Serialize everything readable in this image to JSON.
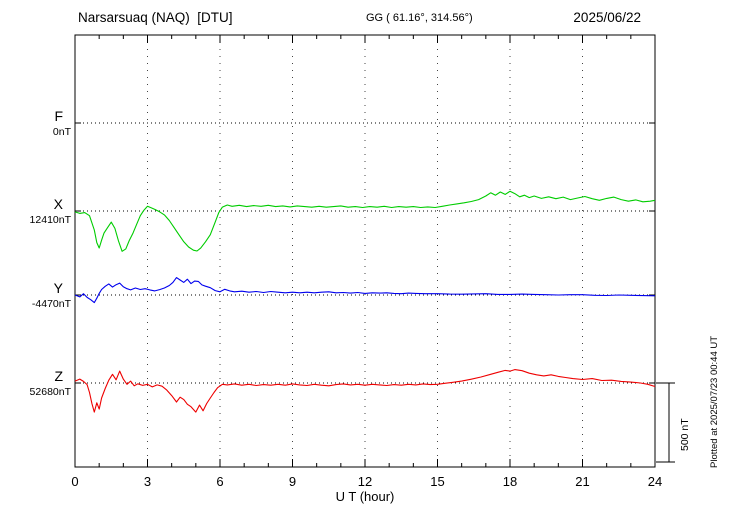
{
  "header": {
    "station_title": "Narsarsuaq (NAQ)  [DTU]",
    "coords": "GG ( 61.16°, 314.56°)",
    "date": "2025/06/22"
  },
  "x_axis": {
    "label": "U T (hour)",
    "ticks": [
      0,
      3,
      6,
      9,
      12,
      15,
      18,
      21,
      24
    ],
    "minor_step": 1,
    "range": [
      0,
      24
    ]
  },
  "scale_bar": {
    "label": "500 nT",
    "nT": 500
  },
  "plot_note": "Plotted at 2025/07/23 00:44 UT",
  "chart_data": {
    "type": "line",
    "title": "Narsarsuaq (NAQ) [DTU] magnetogram 2025/06/22",
    "xlabel": "U T (hour)",
    "x_range": [
      0,
      24
    ],
    "grid": true,
    "legend_position": "left-margin",
    "scale_nT_per_division": 500,
    "units": "points are [UT hour, offset in nT from series baseline]",
    "series": [
      {
        "name": "F",
        "baseline_label": "0nT",
        "baseline_nT": 0,
        "color": "#FFA500",
        "points": []
      },
      {
        "name": "X",
        "baseline_label": "12410nT",
        "baseline_nT": 12410,
        "color": "#00CC00",
        "points": [
          [
            0,
            -6
          ],
          [
            0.2,
            -15
          ],
          [
            0.4,
            -10
          ],
          [
            0.6,
            -30
          ],
          [
            0.8,
            -120
          ],
          [
            0.9,
            -200
          ],
          [
            1.0,
            -234
          ],
          [
            1.1,
            -185
          ],
          [
            1.2,
            -140
          ],
          [
            1.35,
            -105
          ],
          [
            1.5,
            -70
          ],
          [
            1.65,
            -110
          ],
          [
            1.8,
            -190
          ],
          [
            1.95,
            -255
          ],
          [
            2.1,
            -240
          ],
          [
            2.25,
            -185
          ],
          [
            2.4,
            -140
          ],
          [
            2.55,
            -85
          ],
          [
            2.7,
            -30
          ],
          [
            2.85,
            5
          ],
          [
            3.0,
            30
          ],
          [
            3.15,
            20
          ],
          [
            3.3,
            10
          ],
          [
            3.5,
            -5
          ],
          [
            3.7,
            -25
          ],
          [
            3.9,
            -60
          ],
          [
            4.1,
            -105
          ],
          [
            4.3,
            -150
          ],
          [
            4.5,
            -195
          ],
          [
            4.7,
            -228
          ],
          [
            4.9,
            -248
          ],
          [
            5.05,
            -253
          ],
          [
            5.2,
            -235
          ],
          [
            5.4,
            -195
          ],
          [
            5.6,
            -150
          ],
          [
            5.8,
            -70
          ],
          [
            5.95,
            -10
          ],
          [
            6.1,
            25
          ],
          [
            6.3,
            38
          ],
          [
            6.5,
            30
          ],
          [
            6.8,
            36
          ],
          [
            7.1,
            28
          ],
          [
            7.4,
            34
          ],
          [
            7.7,
            30
          ],
          [
            8.0,
            36
          ],
          [
            8.3,
            28
          ],
          [
            8.6,
            32
          ],
          [
            8.9,
            26
          ],
          [
            9.2,
            32
          ],
          [
            9.5,
            28
          ],
          [
            9.8,
            24
          ],
          [
            10.1,
            30
          ],
          [
            10.4,
            24
          ],
          [
            10.7,
            28
          ],
          [
            11.0,
            32
          ],
          [
            11.3,
            24
          ],
          [
            11.6,
            28
          ],
          [
            11.9,
            22
          ],
          [
            12.2,
            28
          ],
          [
            12.5,
            24
          ],
          [
            12.8,
            30
          ],
          [
            13.1,
            22
          ],
          [
            13.4,
            28
          ],
          [
            13.7,
            24
          ],
          [
            14.0,
            28
          ],
          [
            14.3,
            22
          ],
          [
            14.6,
            26
          ],
          [
            14.9,
            22
          ],
          [
            15.2,
            30
          ],
          [
            15.5,
            38
          ],
          [
            15.8,
            45
          ],
          [
            16.1,
            52
          ],
          [
            16.4,
            60
          ],
          [
            16.7,
            72
          ],
          [
            17.0,
            95
          ],
          [
            17.2,
            115
          ],
          [
            17.4,
            100
          ],
          [
            17.6,
            120
          ],
          [
            17.8,
            105
          ],
          [
            18.0,
            125
          ],
          [
            18.2,
            110
          ],
          [
            18.4,
            90
          ],
          [
            18.6,
            100
          ],
          [
            18.8,
            85
          ],
          [
            19.0,
            95
          ],
          [
            19.3,
            80
          ],
          [
            19.6,
            90
          ],
          [
            19.9,
            78
          ],
          [
            20.2,
            88
          ],
          [
            20.5,
            72
          ],
          [
            20.8,
            82
          ],
          [
            21.1,
            92
          ],
          [
            21.4,
            78
          ],
          [
            21.7,
            68
          ],
          [
            22.0,
            80
          ],
          [
            22.3,
            88
          ],
          [
            22.6,
            72
          ],
          [
            22.9,
            62
          ],
          [
            23.2,
            70
          ],
          [
            23.5,
            58
          ],
          [
            23.8,
            62
          ],
          [
            24.0,
            68
          ]
        ]
      },
      {
        "name": "Y",
        "baseline_label": "-4470nT",
        "baseline_nT": -4470,
        "color": "#0000EE",
        "points": [
          [
            0,
            0
          ],
          [
            0.2,
            -12
          ],
          [
            0.35,
            8
          ],
          [
            0.5,
            -15
          ],
          [
            0.65,
            -30
          ],
          [
            0.8,
            -48
          ],
          [
            0.9,
            -20
          ],
          [
            1.0,
            10
          ],
          [
            1.1,
            35
          ],
          [
            1.25,
            55
          ],
          [
            1.4,
            70
          ],
          [
            1.55,
            50
          ],
          [
            1.7,
            65
          ],
          [
            1.85,
            75
          ],
          [
            2.0,
            52
          ],
          [
            2.15,
            40
          ],
          [
            2.3,
            32
          ],
          [
            2.5,
            44
          ],
          [
            2.7,
            35
          ],
          [
            2.9,
            40
          ],
          [
            3.1,
            32
          ],
          [
            3.3,
            26
          ],
          [
            3.5,
            34
          ],
          [
            3.7,
            44
          ],
          [
            3.9,
            60
          ],
          [
            4.05,
            80
          ],
          [
            4.2,
            110
          ],
          [
            4.35,
            95
          ],
          [
            4.5,
            80
          ],
          [
            4.65,
            100
          ],
          [
            4.8,
            72
          ],
          [
            4.95,
            88
          ],
          [
            5.1,
            86
          ],
          [
            5.25,
            64
          ],
          [
            5.4,
            56
          ],
          [
            5.6,
            46
          ],
          [
            5.8,
            28
          ],
          [
            6.0,
            20
          ],
          [
            6.2,
            36
          ],
          [
            6.4,
            26
          ],
          [
            6.6,
            20
          ],
          [
            6.9,
            24
          ],
          [
            7.2,
            18
          ],
          [
            7.5,
            22
          ],
          [
            7.8,
            16
          ],
          [
            8.1,
            22
          ],
          [
            8.4,
            18
          ],
          [
            8.7,
            14
          ],
          [
            9.0,
            18
          ],
          [
            9.3,
            14
          ],
          [
            9.6,
            18
          ],
          [
            9.9,
            14
          ],
          [
            10.2,
            18
          ],
          [
            10.5,
            20
          ],
          [
            10.8,
            14
          ],
          [
            11.1,
            16
          ],
          [
            11.4,
            12
          ],
          [
            11.7,
            16
          ],
          [
            12.0,
            10
          ],
          [
            12.3,
            14
          ],
          [
            12.6,
            12
          ],
          [
            12.9,
            14
          ],
          [
            13.2,
            10
          ],
          [
            13.5,
            8
          ],
          [
            13.8,
            12
          ],
          [
            14.1,
            10
          ],
          [
            14.5,
            8
          ],
          [
            15.0,
            8
          ],
          [
            15.5,
            6
          ],
          [
            16.0,
            5
          ],
          [
            16.5,
            7
          ],
          [
            17.0,
            8
          ],
          [
            17.5,
            4
          ],
          [
            18.0,
            4
          ],
          [
            18.5,
            6
          ],
          [
            19.0,
            4
          ],
          [
            19.5,
            2
          ],
          [
            20.0,
            0
          ],
          [
            20.5,
            2
          ],
          [
            21.0,
            2
          ],
          [
            21.5,
            -2
          ],
          [
            22.0,
            -3
          ],
          [
            22.5,
            0
          ],
          [
            23.0,
            -2
          ],
          [
            23.5,
            -4
          ],
          [
            24.0,
            -5
          ]
        ]
      },
      {
        "name": "Z",
        "baseline_label": "52680nT",
        "baseline_nT": 52680,
        "color": "#EE0000",
        "points": [
          [
            0,
            12
          ],
          [
            0.2,
            25
          ],
          [
            0.35,
            10
          ],
          [
            0.5,
            -10
          ],
          [
            0.6,
            -60
          ],
          [
            0.7,
            -130
          ],
          [
            0.8,
            -184
          ],
          [
            0.9,
            -125
          ],
          [
            1.0,
            -165
          ],
          [
            1.1,
            -95
          ],
          [
            1.25,
            -35
          ],
          [
            1.4,
            18
          ],
          [
            1.55,
            55
          ],
          [
            1.7,
            20
          ],
          [
            1.85,
            75
          ],
          [
            2.0,
            25
          ],
          [
            2.15,
            -8
          ],
          [
            2.3,
            12
          ],
          [
            2.45,
            -18
          ],
          [
            2.6,
            -5
          ],
          [
            2.8,
            -15
          ],
          [
            3.0,
            -8
          ],
          [
            3.2,
            -25
          ],
          [
            3.4,
            -12
          ],
          [
            3.6,
            -20
          ],
          [
            3.8,
            -45
          ],
          [
            4.0,
            -80
          ],
          [
            4.2,
            -120
          ],
          [
            4.35,
            -90
          ],
          [
            4.5,
            -105
          ],
          [
            4.65,
            -135
          ],
          [
            4.8,
            -150
          ],
          [
            5.0,
            -184
          ],
          [
            5.15,
            -140
          ],
          [
            5.3,
            -176
          ],
          [
            5.45,
            -130
          ],
          [
            5.6,
            -95
          ],
          [
            5.75,
            -60
          ],
          [
            5.9,
            -30
          ],
          [
            6.1,
            -8
          ],
          [
            6.3,
            -12
          ],
          [
            6.6,
            -6
          ],
          [
            6.9,
            -14
          ],
          [
            7.2,
            -8
          ],
          [
            7.5,
            -16
          ],
          [
            7.8,
            -10
          ],
          [
            8.1,
            -14
          ],
          [
            8.4,
            -8
          ],
          [
            8.7,
            -14
          ],
          [
            9.0,
            -6
          ],
          [
            9.3,
            -12
          ],
          [
            9.6,
            -16
          ],
          [
            9.9,
            -8
          ],
          [
            10.2,
            -14
          ],
          [
            10.5,
            -18
          ],
          [
            10.8,
            -10
          ],
          [
            11.1,
            -6
          ],
          [
            11.4,
            -12
          ],
          [
            11.7,
            -8
          ],
          [
            12.0,
            -14
          ],
          [
            12.3,
            -8
          ],
          [
            12.6,
            -12
          ],
          [
            12.9,
            -16
          ],
          [
            13.2,
            -10
          ],
          [
            13.5,
            -14
          ],
          [
            13.8,
            -8
          ],
          [
            14.1,
            -12
          ],
          [
            14.4,
            -6
          ],
          [
            14.7,
            -10
          ],
          [
            15.0,
            -8
          ],
          [
            15.3,
            -2
          ],
          [
            15.6,
            4
          ],
          [
            16.0,
            12
          ],
          [
            16.4,
            24
          ],
          [
            16.8,
            38
          ],
          [
            17.2,
            55
          ],
          [
            17.5,
            68
          ],
          [
            17.8,
            80
          ],
          [
            18.0,
            75
          ],
          [
            18.2,
            85
          ],
          [
            18.5,
            78
          ],
          [
            18.8,
            62
          ],
          [
            19.1,
            52
          ],
          [
            19.4,
            45
          ],
          [
            19.7,
            52
          ],
          [
            20.0,
            42
          ],
          [
            20.3,
            35
          ],
          [
            20.6,
            28
          ],
          [
            21.0,
            22
          ],
          [
            21.4,
            28
          ],
          [
            21.8,
            16
          ],
          [
            22.2,
            18
          ],
          [
            22.6,
            10
          ],
          [
            23.0,
            6
          ],
          [
            23.4,
            0
          ],
          [
            23.7,
            -8
          ],
          [
            24.0,
            -22
          ]
        ]
      }
    ]
  }
}
